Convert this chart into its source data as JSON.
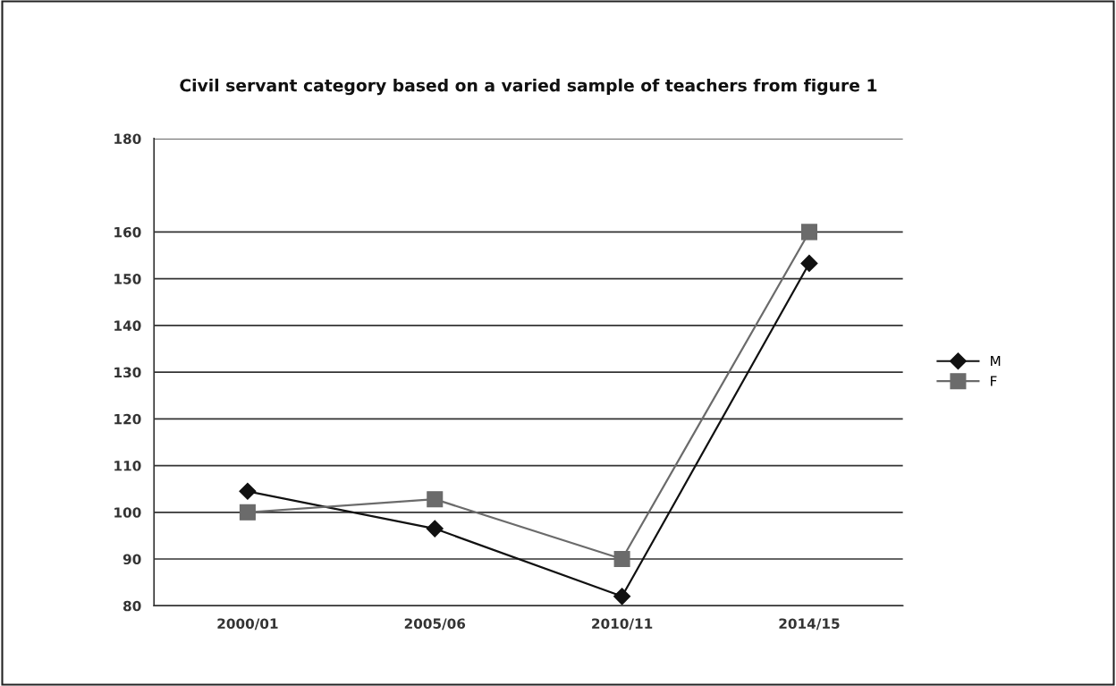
{
  "chart_data": {
    "type": "line",
    "title": "Civil servant category based on a varied sample of teachers from figure 1",
    "categories": [
      "2000/01",
      "2005/06",
      "2010/11",
      "2014/15"
    ],
    "series": [
      {
        "name": "M",
        "color": "#111111",
        "marker": "diamond",
        "values": [
          104.5,
          96.5,
          82,
          153.3
        ]
      },
      {
        "name": "F",
        "color": "#6b6b6b",
        "marker": "square",
        "values": [
          100,
          102.8,
          90,
          160
        ]
      }
    ],
    "ylim": [
      80,
      180
    ],
    "yticks": [
      80,
      90,
      100,
      110,
      120,
      130,
      140,
      150,
      160,
      180
    ],
    "grid": "y",
    "legend": "right",
    "line_style": "solid"
  }
}
